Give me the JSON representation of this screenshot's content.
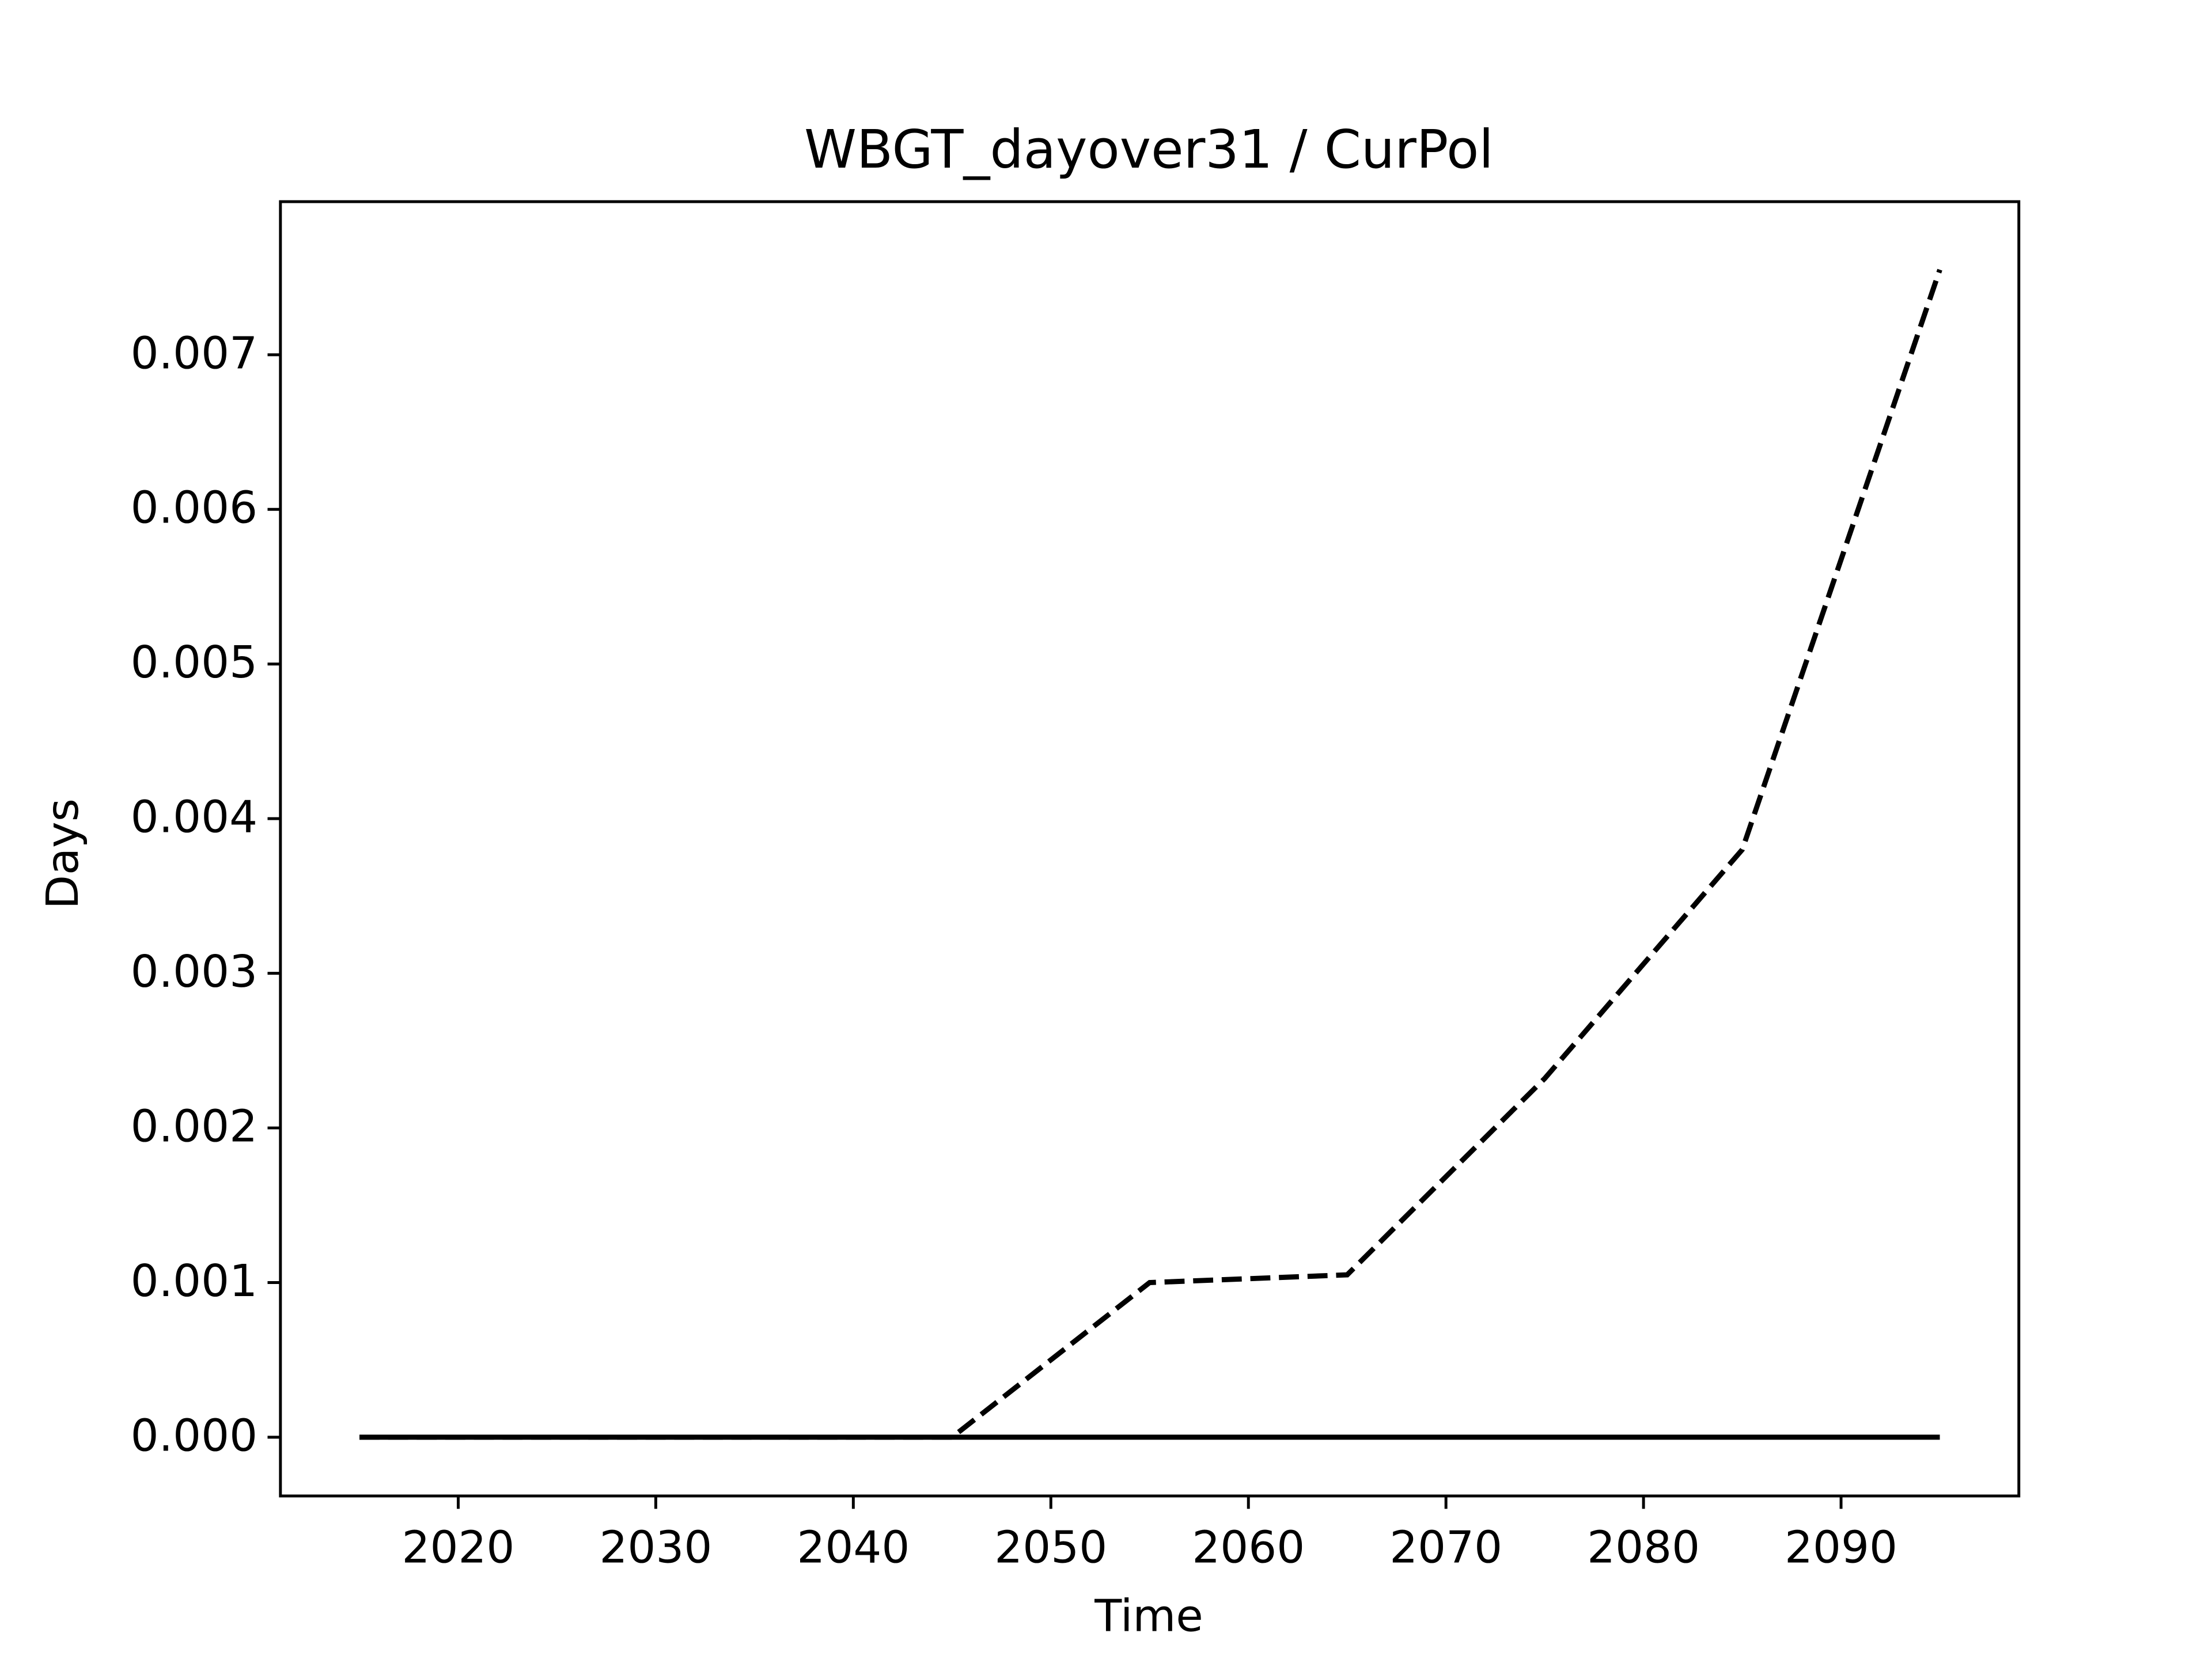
{
  "chart_data": {
    "type": "line",
    "title": "WBGT_dayover31 / CurPol",
    "x_label": "Time",
    "y_label": "Days",
    "x": [
      2015,
      2025,
      2035,
      2045,
      2055,
      2065,
      2075,
      2085,
      2095
    ],
    "series": [
      {
        "color": "#000000",
        "dash": "dashed",
        "values": [
          0,
          0,
          0,
          0,
          0.001,
          0.00105,
          0.00232,
          0.0038,
          0.00755
        ]
      },
      {
        "color": "#000000",
        "dash": "solid",
        "values": [
          0,
          0,
          0,
          0,
          0,
          0,
          0,
          0,
          0
        ]
      }
    ],
    "xlim": [
      2011,
      2099
    ],
    "xticks": [
      2020,
      2030,
      2040,
      2050,
      2060,
      2070,
      2080,
      2090
    ],
    "ylim": [
      -0.00038,
      0.00799
    ],
    "yticks": [
      {
        "value": 0,
        "label": "0.000"
      },
      {
        "value": 0.001,
        "label": "0.001"
      },
      {
        "value": 0.002,
        "label": "0.002"
      },
      {
        "value": 0.003,
        "label": "0.003"
      },
      {
        "value": 0.004,
        "label": "0.004"
      },
      {
        "value": 0.005,
        "label": "0.005"
      },
      {
        "value": 0.006,
        "label": "0.006"
      },
      {
        "value": 0.007,
        "label": "0.007"
      }
    ],
    "grid": false
  }
}
